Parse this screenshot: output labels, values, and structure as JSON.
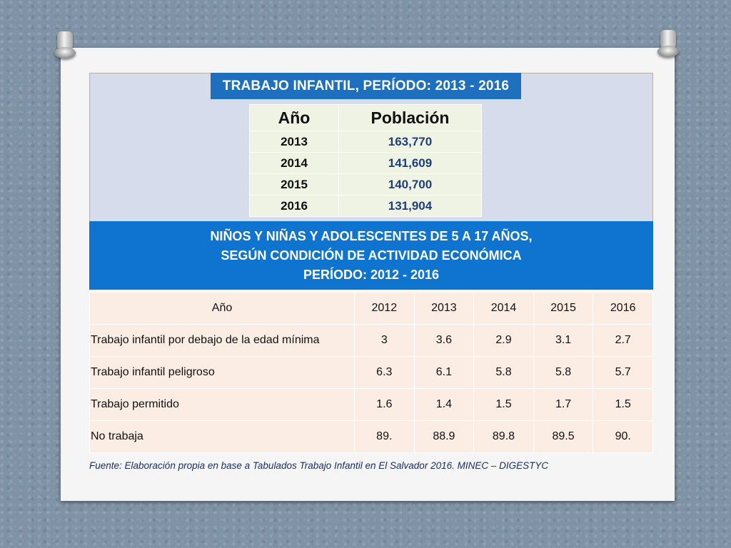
{
  "title": "TRABAJO INFANTIL, PERÍODO:  2013 - 2016",
  "population_table": {
    "headers": [
      "Año",
      "Población"
    ],
    "rows": [
      {
        "year": "2013",
        "value": "163,770"
      },
      {
        "year": "2014",
        "value": "141,609"
      },
      {
        "year": "2015",
        "value": "140,700"
      },
      {
        "year": "2016",
        "value": "131,904"
      }
    ]
  },
  "activity_heading": {
    "line1": "NIÑOS Y NIÑAS Y ADOLESCENTES DE 5 A 17 AÑOS,",
    "line2": "SEGÚN CONDICIÓN DE ACTIVIDAD ECONÓMICA",
    "line3": "PERÍODO: 2012 - 2016"
  },
  "activity_table": {
    "header": [
      "Año",
      "2012",
      "2013",
      "2014",
      "2015",
      "2016"
    ],
    "rows": [
      [
        "Trabajo infantil por debajo de la edad mínima",
        "3",
        "3.6",
        "2.9",
        "3.1",
        "2.7"
      ],
      [
        "Trabajo infantil peligroso",
        "6.3",
        "6.1",
        "5.8",
        "5.8",
        "5.7"
      ],
      [
        "Trabajo permitido",
        "1.6",
        "1.4",
        "1.5",
        "1.7",
        "1.5"
      ],
      [
        "No trabaja",
        "89.",
        "88.9",
        "89.8",
        "89.5",
        "90."
      ]
    ]
  },
  "source": "Fuente: Elaboración propia en base a Tabulados Trabajo Infantil en El Salvador 2016. MINEC – DIGESTYC",
  "colors": {
    "title_bar": "#1f6fbf",
    "band": "#0e74cf",
    "panel": "#d6dcec",
    "table_bg": "#fbece4",
    "pop_bg": "#eff3e3"
  }
}
